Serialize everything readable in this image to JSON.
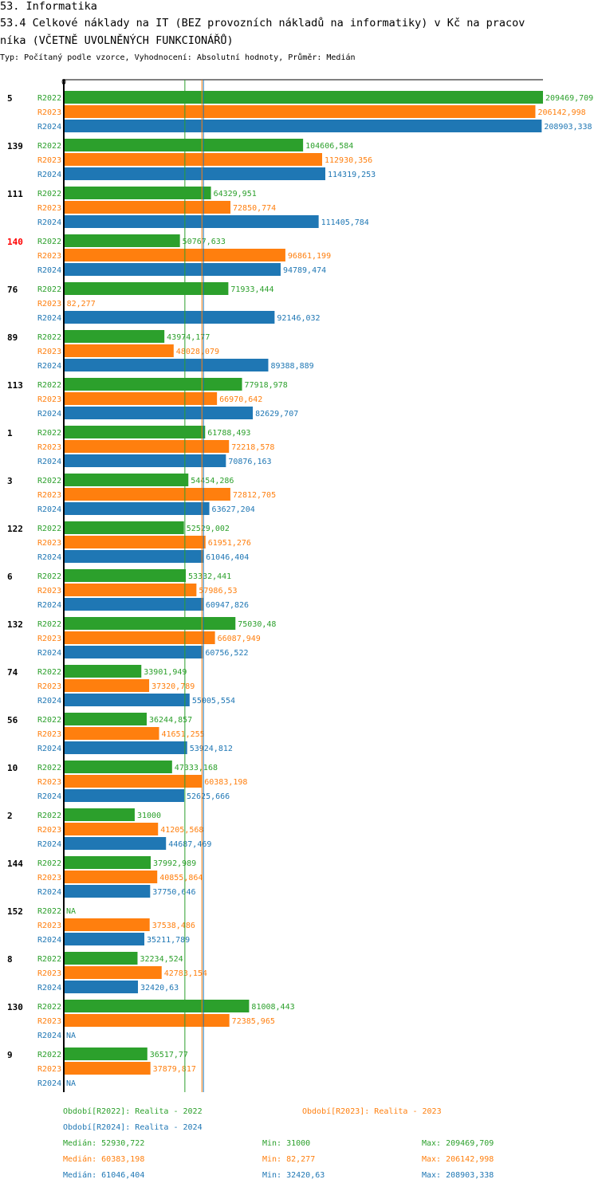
{
  "header": {
    "line1": "53. Informatika",
    "line2": "53.4 Celkové náklady na IT (BEZ provozních nákladů na informatiky) v Kč na pracov",
    "line3": "níka (VČETNĚ UVOLNĚNÝCH FUNKCIONÁŘŮ)",
    "subtitle": "Typ: Počítaný podle vzorce, Vyhodnocení: Absolutní hodnoty, Průměr: Medián"
  },
  "colors": {
    "R2022": "#2ca02c",
    "R2023": "#ff7f0e",
    "R2024": "#1f77b4",
    "highlight": "#ff0000"
  },
  "chart_data": {
    "type": "bar",
    "orientation": "horizontal",
    "axis_zero_label": "0",
    "xlim": [
      0,
      209469.709
    ],
    "highlight_category": "140",
    "series_names": [
      "R2022",
      "R2023",
      "R2024"
    ],
    "groups": [
      {
        "id": "5",
        "values": [
          209469.709,
          206142.998,
          208903.338
        ],
        "labels": [
          "209469,709",
          "206142,998",
          "208903,338"
        ]
      },
      {
        "id": "139",
        "values": [
          104606.584,
          112930.356,
          114319.253
        ],
        "labels": [
          "104606,584",
          "112930,356",
          "114319,253"
        ]
      },
      {
        "id": "111",
        "values": [
          64329.951,
          72850.774,
          111405.784
        ],
        "labels": [
          "64329,951",
          "72850,774",
          "111405,784"
        ]
      },
      {
        "id": "140",
        "values": [
          50767.633,
          96861.199,
          94789.474
        ],
        "labels": [
          "50767,633",
          "96861,199",
          "94789,474"
        ]
      },
      {
        "id": "76",
        "values": [
          71933.444,
          82.277,
          92146.032
        ],
        "labels": [
          "71933,444",
          "82,277",
          "92146,032"
        ]
      },
      {
        "id": "89",
        "values": [
          43974.177,
          48028.079,
          89388.889
        ],
        "labels": [
          "43974,177",
          "48028,079",
          "89388,889"
        ]
      },
      {
        "id": "113",
        "values": [
          77918.978,
          66970.642,
          82629.707
        ],
        "labels": [
          "77918,978",
          "66970,642",
          "82629,707"
        ]
      },
      {
        "id": "1",
        "values": [
          61788.493,
          72218.578,
          70876.163
        ],
        "labels": [
          "61788,493",
          "72218,578",
          "70876,163"
        ]
      },
      {
        "id": "3",
        "values": [
          54454.286,
          72812.705,
          63627.204
        ],
        "labels": [
          "54454,286",
          "72812,705",
          "63627,204"
        ]
      },
      {
        "id": "122",
        "values": [
          52529.002,
          61951.276,
          61046.404
        ],
        "labels": [
          "52529,002",
          "61951,276",
          "61046,404"
        ]
      },
      {
        "id": "6",
        "values": [
          53332.441,
          57986.53,
          60947.826
        ],
        "labels": [
          "53332,441",
          "57986,53",
          "60947,826"
        ]
      },
      {
        "id": "132",
        "values": [
          75030.48,
          66087.949,
          60756.522
        ],
        "labels": [
          "75030,48",
          "66087,949",
          "60756,522"
        ]
      },
      {
        "id": "74",
        "values": [
          33901.949,
          37320.789,
          55005.554
        ],
        "labels": [
          "33901,949",
          "37320,789",
          "55005,554"
        ]
      },
      {
        "id": "56",
        "values": [
          36244.857,
          41651.255,
          53924.812
        ],
        "labels": [
          "36244,857",
          "41651,255",
          "53924,812"
        ]
      },
      {
        "id": "10",
        "values": [
          47333.168,
          60383.198,
          52625.666
        ],
        "labels": [
          "47333,168",
          "60383,198",
          "52625,666"
        ]
      },
      {
        "id": "2",
        "values": [
          31000,
          41205.568,
          44687.469
        ],
        "labels": [
          "31000",
          "41205,568",
          "44687,469"
        ]
      },
      {
        "id": "144",
        "values": [
          37992.989,
          40855.864,
          37750.646
        ],
        "labels": [
          "37992,989",
          "40855,864",
          "37750,646"
        ]
      },
      {
        "id": "152",
        "values": [
          null,
          37538.486,
          35211.789
        ],
        "labels": [
          "NA",
          "37538,486",
          "35211,789"
        ]
      },
      {
        "id": "8",
        "values": [
          32234.524,
          42783.154,
          32420.63
        ],
        "labels": [
          "32234,524",
          "42783,154",
          "32420,63"
        ]
      },
      {
        "id": "130",
        "values": [
          81008.443,
          72385.965,
          null
        ],
        "labels": [
          "81008,443",
          "72385,965",
          "NA"
        ]
      },
      {
        "id": "9",
        "values": [
          36517.77,
          37879.817,
          null
        ],
        "labels": [
          "36517,77",
          "37879,817",
          "NA"
        ]
      }
    ],
    "median_lines": [
      52930.722,
      60383.198,
      61046.404
    ]
  },
  "legend": {
    "period_r2022": "Období[R2022]: Realita - 2022",
    "period_r2023": "Období[R2023]: Realita - 2023",
    "period_r2024": "Období[R2024]: Realita - 2024",
    "stats": [
      {
        "median": "Medián: 52930,722",
        "min": "Min: 31000",
        "max": "Max: 209469,709"
      },
      {
        "median": "Medián: 60383,198",
        "min": "Min: 82,277",
        "max": "Max: 206142,998"
      },
      {
        "median": "Medián: 61046,404",
        "min": "Min: 32420,63",
        "max": "Max: 208903,338"
      }
    ]
  }
}
